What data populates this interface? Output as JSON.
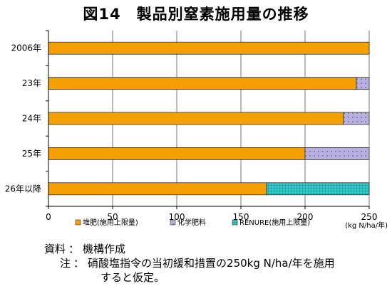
{
  "chart_data": {
    "type": "bar",
    "orientation": "horizontal",
    "stacked": true,
    "title": "図14　製品別窒素施用量の推移",
    "categories": [
      "2006年",
      "23年",
      "24年",
      "25年",
      "26年以降"
    ],
    "series": [
      {
        "name": "堆肥(施用上限量)",
        "values": [
          250,
          240,
          230,
          200,
          170
        ],
        "color": "#f5a000",
        "pattern": "solid"
      },
      {
        "name": "化学肥料",
        "values": [
          0,
          10,
          20,
          50,
          0
        ],
        "color": "#b8b0e0",
        "pattern": "dots"
      },
      {
        "name": "RENURE(施用上限量)",
        "values": [
          0,
          0,
          0,
          0,
          80
        ],
        "color": "#33cccc",
        "pattern": "grid"
      }
    ],
    "xlim": [
      0,
      250
    ],
    "xticks": [
      0,
      50,
      100,
      150,
      200,
      250
    ],
    "xunit": "(kg N/ha/年)",
    "grid": true,
    "legend_position": "bottom"
  },
  "notes": {
    "source_label": "資料",
    "source_text": "機構作成",
    "note_label": "注",
    "note_line1": "硝酸塩指令の当初緩和措置の250kg N/ha/年を施用",
    "note_line2": "すると仮定。",
    "separator": "："
  }
}
